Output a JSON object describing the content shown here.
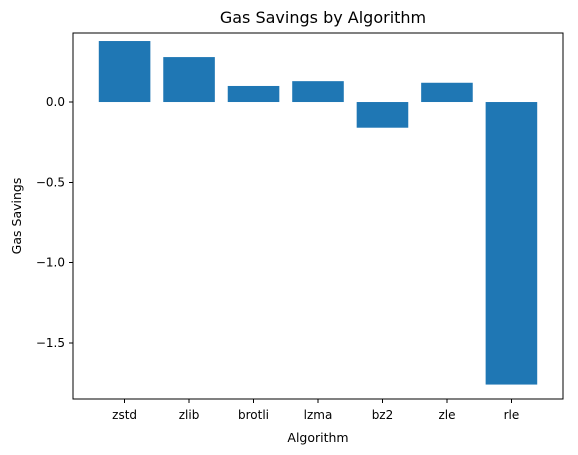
{
  "chart_data": {
    "type": "bar",
    "title": "Gas Savings by Algorithm",
    "xlabel": "Algorithm",
    "ylabel": "Gas Savings",
    "categories": [
      "zstd",
      "zlib",
      "brotli",
      "lzma",
      "bz2",
      "zle",
      "rle"
    ],
    "values": [
      0.38,
      0.28,
      0.1,
      0.13,
      -0.16,
      0.12,
      -1.76
    ],
    "ylim": [
      -1.85,
      0.43
    ],
    "yticks": [
      0.0,
      -0.5,
      -1.0,
      -1.5
    ],
    "ytick_labels": [
      "0.0",
      "−0.5",
      "−1.0",
      "−1.5"
    ],
    "bar_color": "#1f77b4",
    "grid": false,
    "legend": "none"
  }
}
